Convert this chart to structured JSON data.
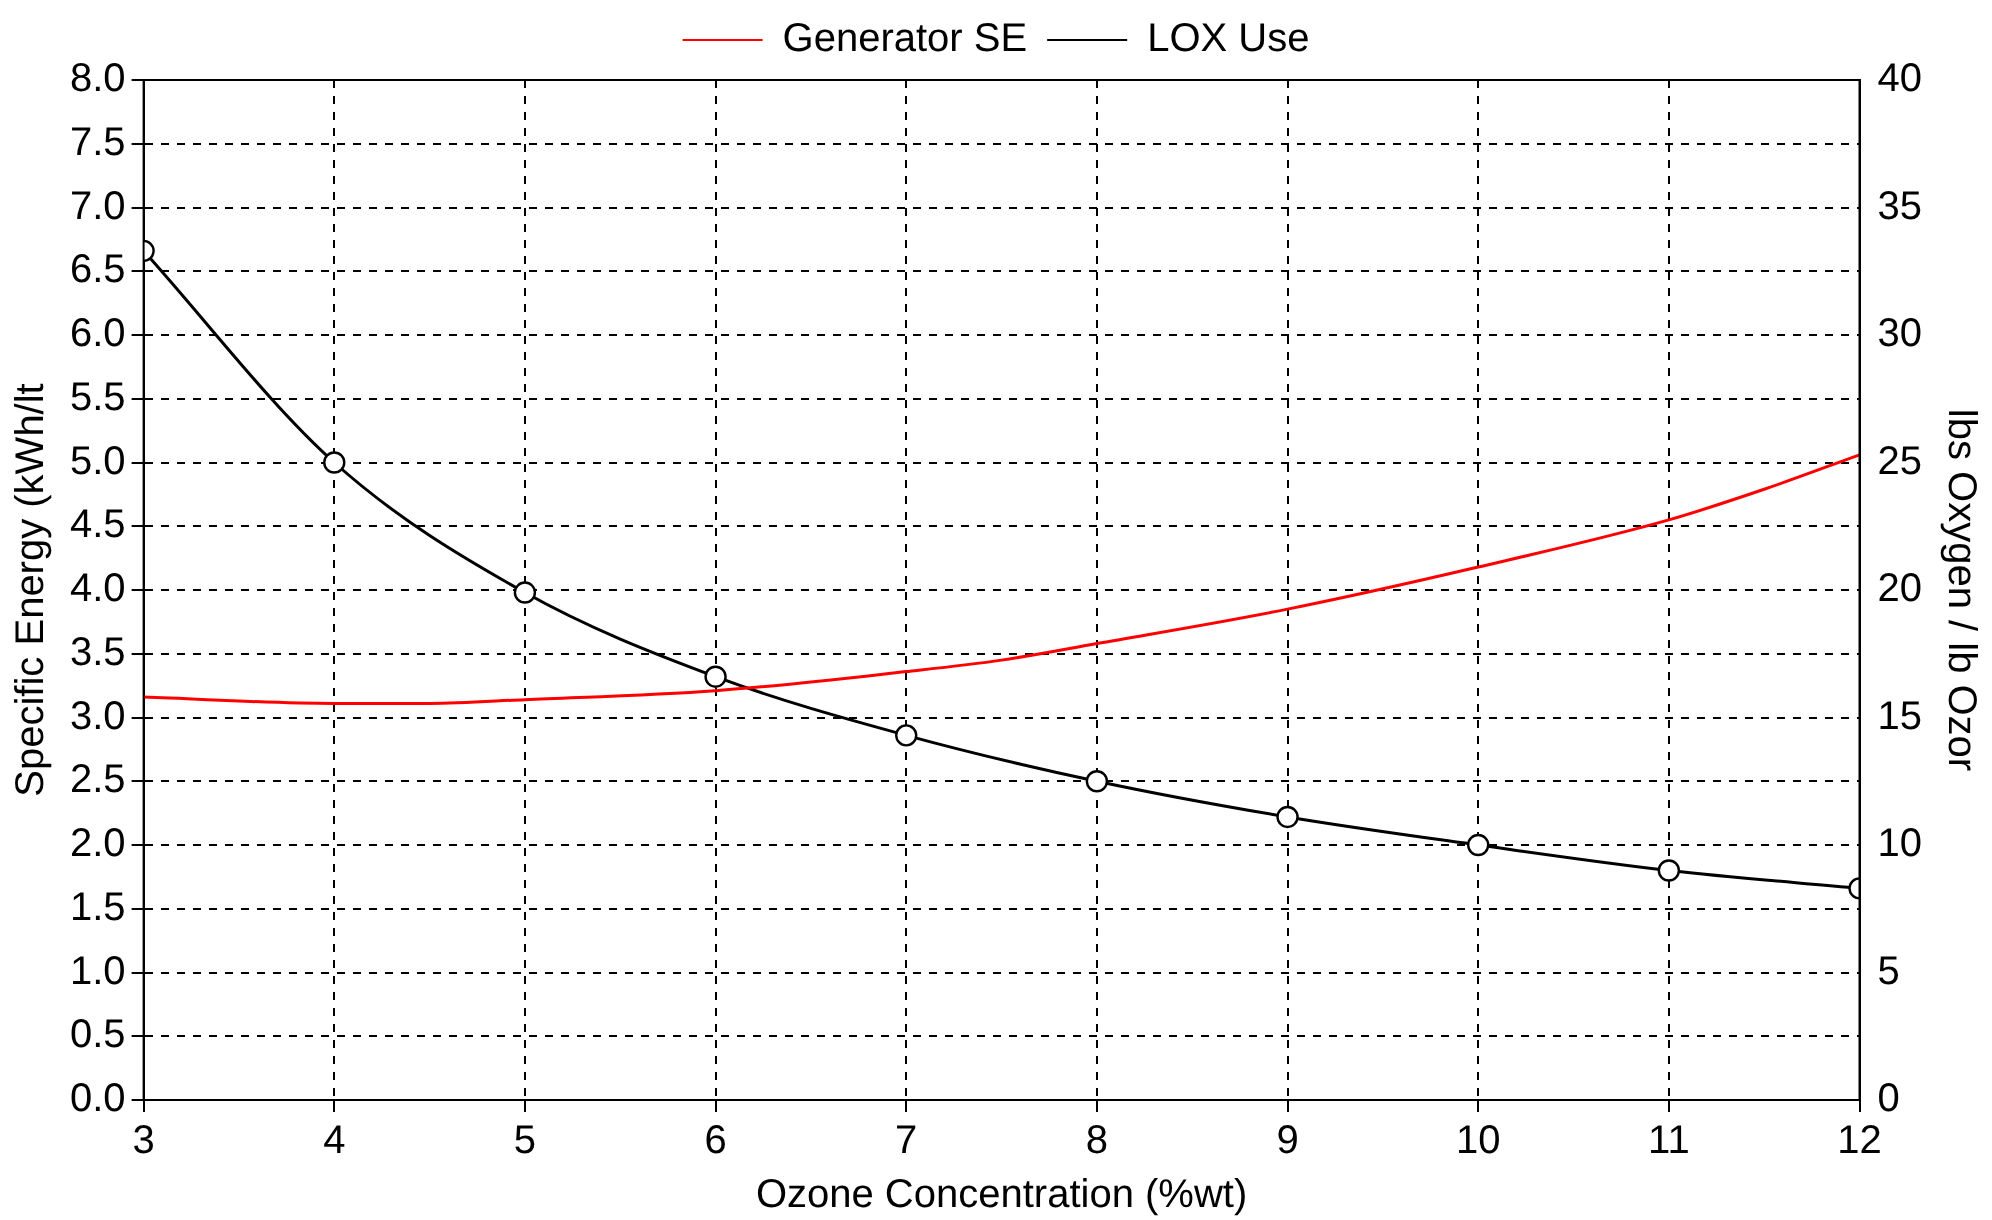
{
  "chart_data": {
    "type": "line",
    "xlabel": "Ozone Concentration (%wt)",
    "ylabel": "Specific Energy (kWh/lt",
    "y2label": "lbs Oxygen / lb Ozor",
    "xlim": [
      3,
      12
    ],
    "xticks": [
      3,
      4,
      5,
      6,
      7,
      8,
      9,
      10,
      11,
      12
    ],
    "ylim": [
      0,
      8
    ],
    "yticks": [
      {
        "value": 0,
        "label": "0.0"
      },
      0.5,
      {
        "value": 1,
        "label": "1.0"
      },
      1.5,
      {
        "value": 2,
        "label": "2.0"
      },
      2.5,
      {
        "value": 3,
        "label": "3.0"
      },
      3.5,
      {
        "value": 4,
        "label": "4.0"
      },
      4.5,
      {
        "value": 5,
        "label": "5.0"
      },
      5.5,
      {
        "value": 6,
        "label": "6.0"
      },
      6.5,
      {
        "value": 7,
        "label": "7.0"
      },
      7.5,
      {
        "value": 8,
        "label": "8.0"
      }
    ],
    "y2lim": [
      0,
      40
    ],
    "y2ticks": [
      0,
      5,
      10,
      15,
      20,
      25,
      30,
      35,
      40
    ],
    "grid": true,
    "legend": "top",
    "line_style": "solid",
    "series": [
      {
        "name": "Generator SE",
        "color": "#ff0000",
        "marker": "none",
        "x": [
          3,
          4,
          4.5,
          5,
          6,
          7,
          7.5,
          8,
          9,
          10,
          11,
          11.5,
          12
        ],
        "values": [
          3.16,
          3.11,
          3.11,
          3.14,
          3.21,
          3.36,
          3.45,
          3.58,
          3.85,
          4.18,
          4.55,
          4.79,
          5.06
        ]
      },
      {
        "name": "LOX Use",
        "color": "#000000",
        "marker": "circle",
        "axis": "y2",
        "x": [
          3,
          4,
          5,
          6,
          7,
          8,
          9,
          10,
          11,
          12
        ],
        "values": [
          33.3,
          25.0,
          19.9,
          16.6,
          14.3,
          12.5,
          11.1,
          10.0,
          9.0,
          8.3
        ]
      }
    ]
  }
}
